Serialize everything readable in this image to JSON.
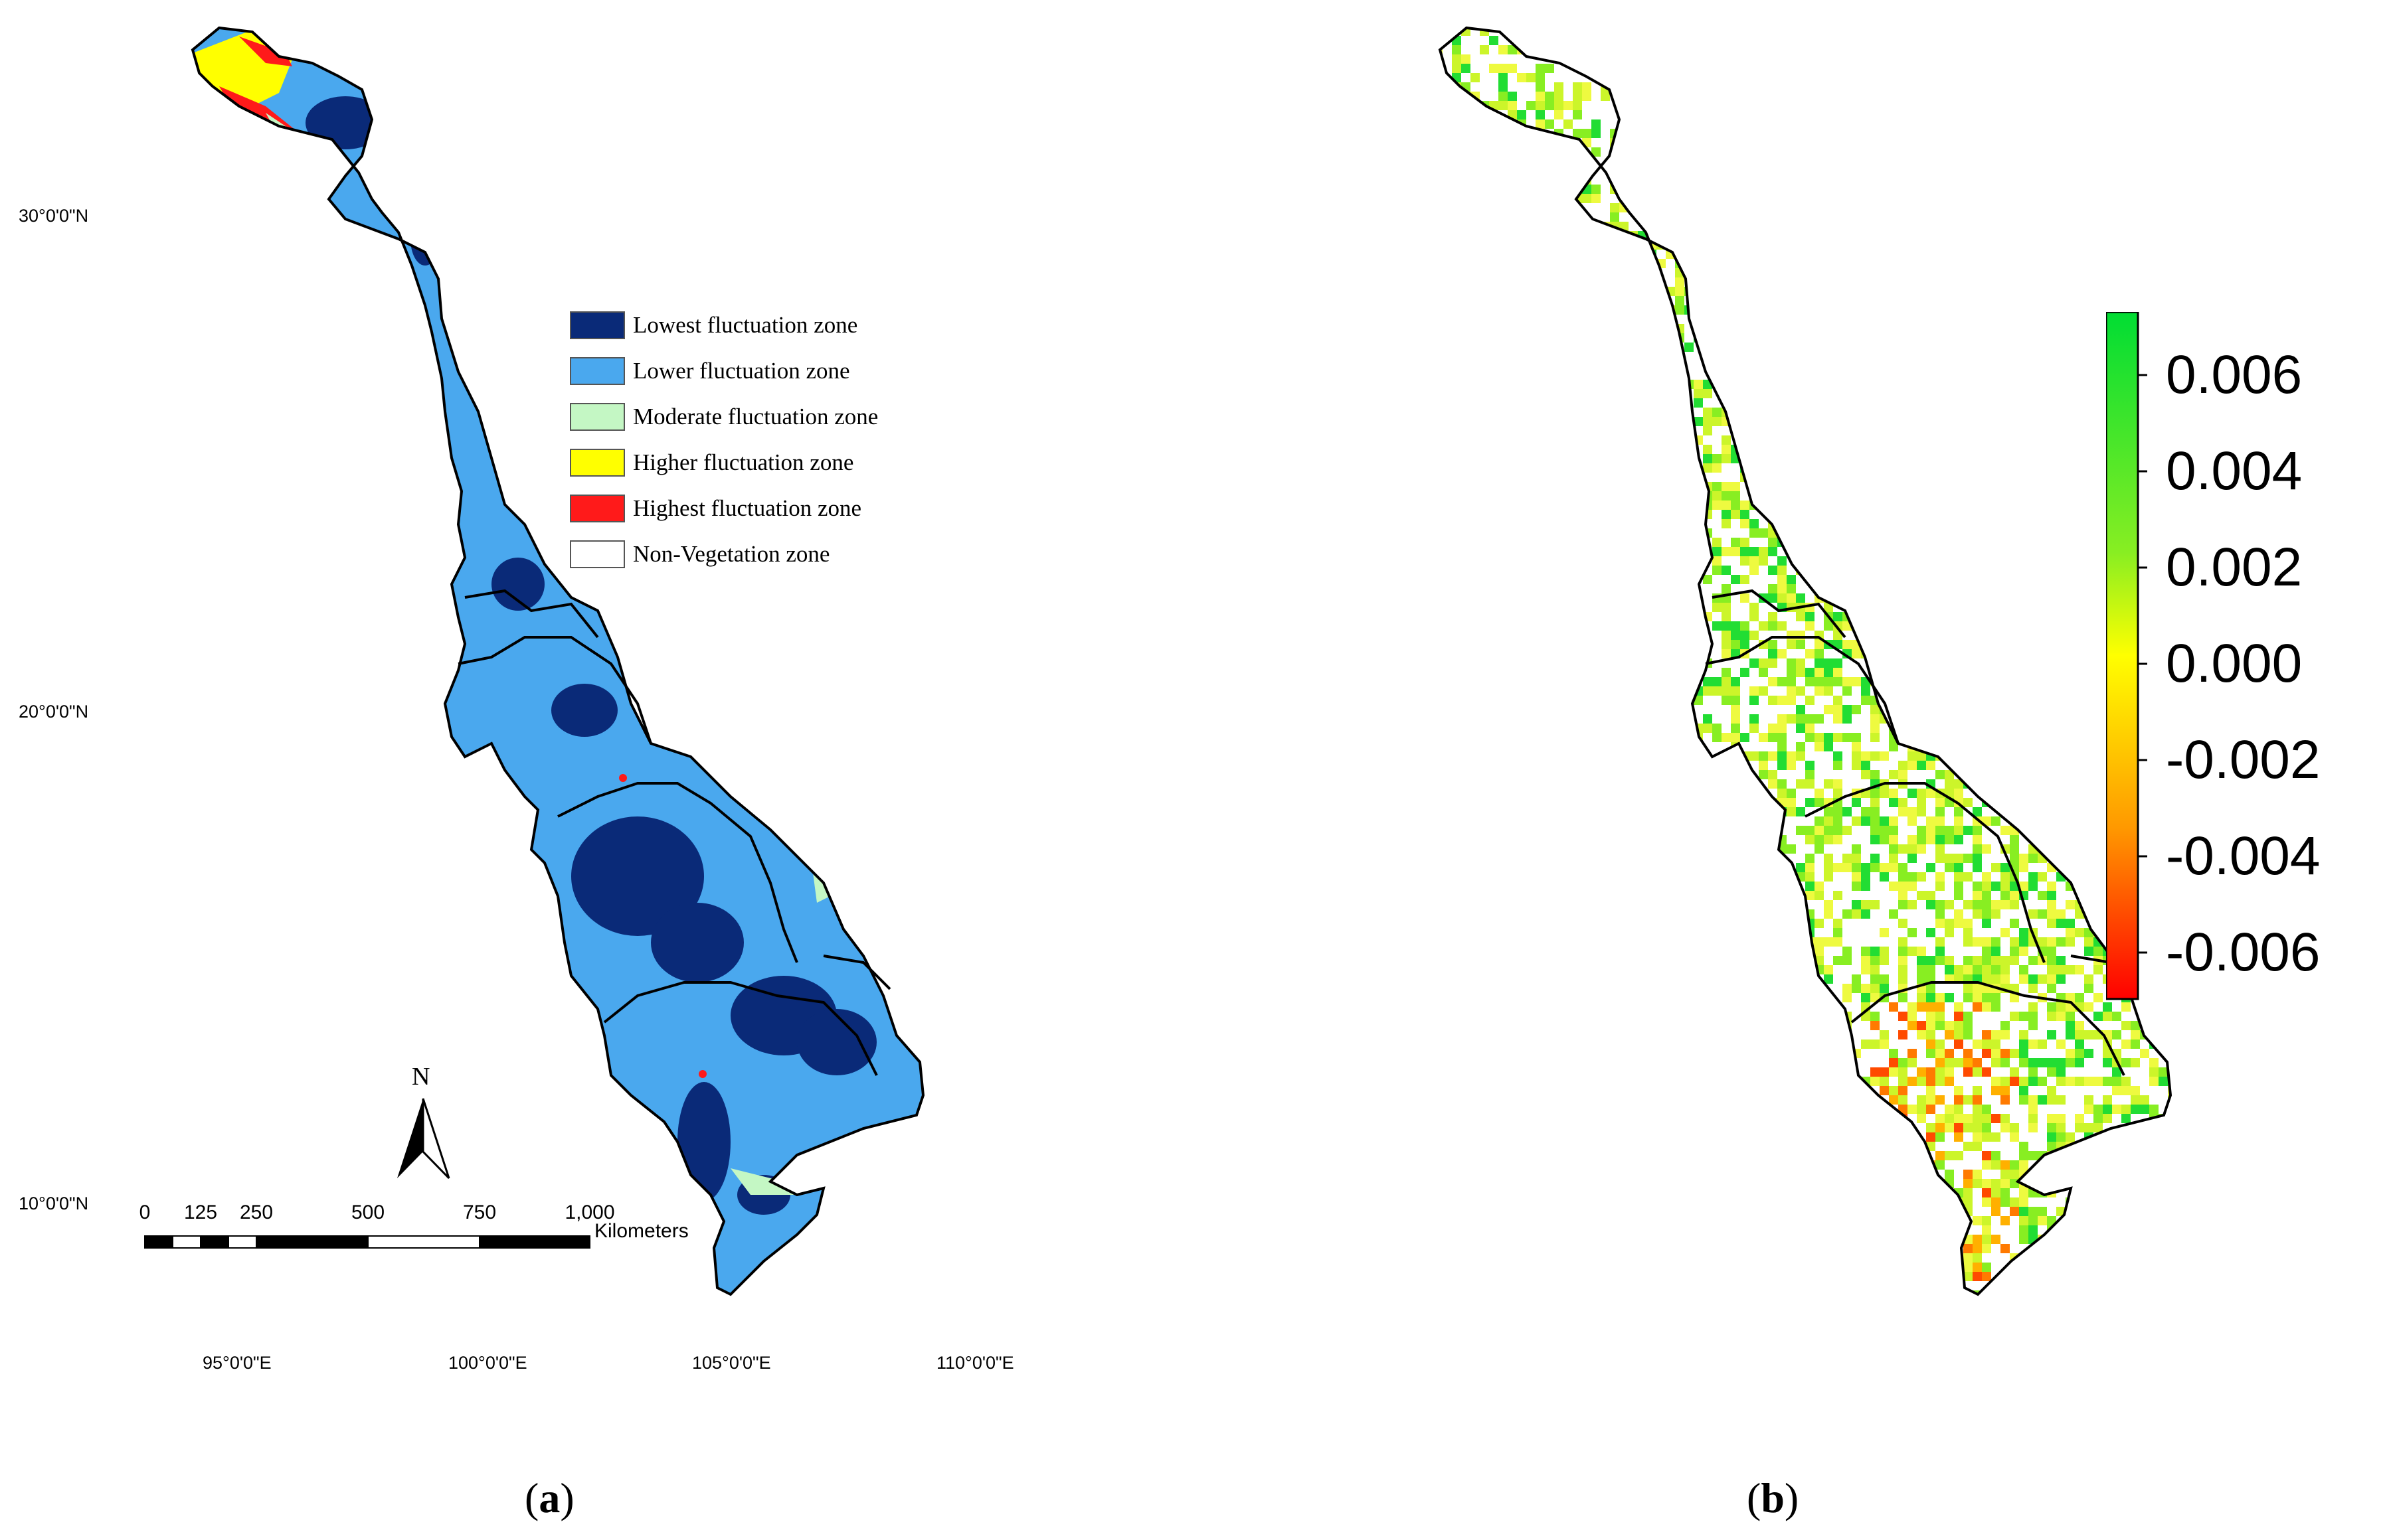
{
  "panel_a": {
    "caption_letter": "a",
    "latitude_labels": [
      "30°0'0\"N",
      "20°0'0\"N",
      "10°0'0\"N"
    ],
    "longitude_labels": [
      "95°0'0\"E",
      "100°0'0\"E",
      "105°0'0\"E",
      "110°0'0\"E"
    ],
    "north_label": "N",
    "scale_bar": {
      "ticks": [
        "0",
        "125",
        "250",
        "500",
        "750",
        "1,000"
      ],
      "unit": "Kilometers"
    },
    "legend": [
      {
        "label": "Lowest fluctuation zone",
        "color": "#0a2a78"
      },
      {
        "label": "Lower fluctuation zone",
        "color": "#4aa8ee"
      },
      {
        "label": "Moderate fluctuation zone",
        "color": "#c4f7c4"
      },
      {
        "label": "Higher fluctuation zone",
        "color": "#ffff00"
      },
      {
        "label": "Highest fluctuation zone",
        "color": "#ff1a1a"
      },
      {
        "label": "Non-Vegetation zone",
        "color": "#ffffff"
      }
    ]
  },
  "panel_b": {
    "caption_letter": "b",
    "colorbar": {
      "ticks": [
        "0.006",
        "0.004",
        "0.002",
        "0.000",
        "-0.002",
        "-0.004",
        "-0.006"
      ],
      "colors": [
        "#00dd33",
        "#ffff00",
        "#ff0000"
      ]
    }
  }
}
